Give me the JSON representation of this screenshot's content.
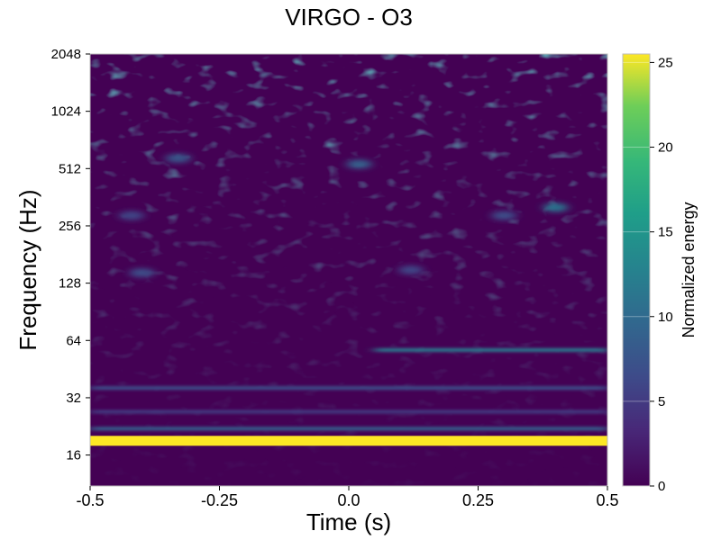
{
  "chart_data": {
    "type": "heatmap",
    "title": "VIRGO - O3",
    "xlabel": "Time (s)",
    "ylabel": "Frequency (Hz)",
    "colorbar_label": "Normalized energy",
    "colormap": "viridis",
    "xlim": [
      -0.5,
      0.5
    ],
    "ylim": [
      11,
      2048
    ],
    "yscale": "log2",
    "clim": [
      0,
      25.5
    ],
    "x_ticks": [
      {
        "value": -0.5,
        "label": "-0.5"
      },
      {
        "value": -0.25,
        "label": "-0.25"
      },
      {
        "value": 0.0,
        "label": "0.0"
      },
      {
        "value": 0.25,
        "label": "0.25"
      },
      {
        "value": 0.5,
        "label": "0.5"
      }
    ],
    "y_ticks": [
      {
        "value": 16,
        "label": "16"
      },
      {
        "value": 32,
        "label": "32"
      },
      {
        "value": 64,
        "label": "64"
      },
      {
        "value": 128,
        "label": "128"
      },
      {
        "value": 256,
        "label": "256"
      },
      {
        "value": 512,
        "label": "512"
      },
      {
        "value": 1024,
        "label": "1024"
      },
      {
        "value": 2048,
        "label": "2048"
      }
    ],
    "colorbar_ticks": [
      {
        "value": 0,
        "label": "0"
      },
      {
        "value": 5,
        "label": "5"
      },
      {
        "value": 10,
        "label": "10"
      },
      {
        "value": 15,
        "label": "15"
      },
      {
        "value": 20,
        "label": "20"
      },
      {
        "value": 25,
        "label": "25"
      }
    ],
    "features": [
      {
        "kind": "band",
        "t_start": -0.5,
        "t_end": 0.5,
        "freq_hz": 19,
        "energy": 25.5,
        "note": "bright horizontal line"
      },
      {
        "kind": "band",
        "t_start": 0.05,
        "t_end": 0.5,
        "freq_hz": 57,
        "energy": 12
      },
      {
        "kind": "band",
        "t_start": -0.5,
        "t_end": 0.5,
        "freq_hz": 36,
        "energy": 7
      },
      {
        "kind": "band",
        "t_start": -0.5,
        "t_end": 0.5,
        "freq_hz": 22,
        "energy": 9
      },
      {
        "kind": "band",
        "t_start": -0.5,
        "t_end": 0.5,
        "freq_hz": 27,
        "energy": 5
      },
      {
        "kind": "blob",
        "t": -0.4,
        "freq_hz": 145,
        "energy": 7
      },
      {
        "kind": "blob",
        "t": 0.4,
        "freq_hz": 320,
        "energy": 11
      },
      {
        "kind": "blob",
        "t": 0.3,
        "freq_hz": 290,
        "energy": 7
      },
      {
        "kind": "blob",
        "t": -0.33,
        "freq_hz": 580,
        "energy": 8
      },
      {
        "kind": "blob",
        "t": 0.02,
        "freq_hz": 540,
        "energy": 9
      },
      {
        "kind": "blob",
        "t": 0.12,
        "freq_hz": 150,
        "energy": 6
      },
      {
        "kind": "blob",
        "t": -0.42,
        "freq_hz": 290,
        "energy": 6
      }
    ]
  }
}
